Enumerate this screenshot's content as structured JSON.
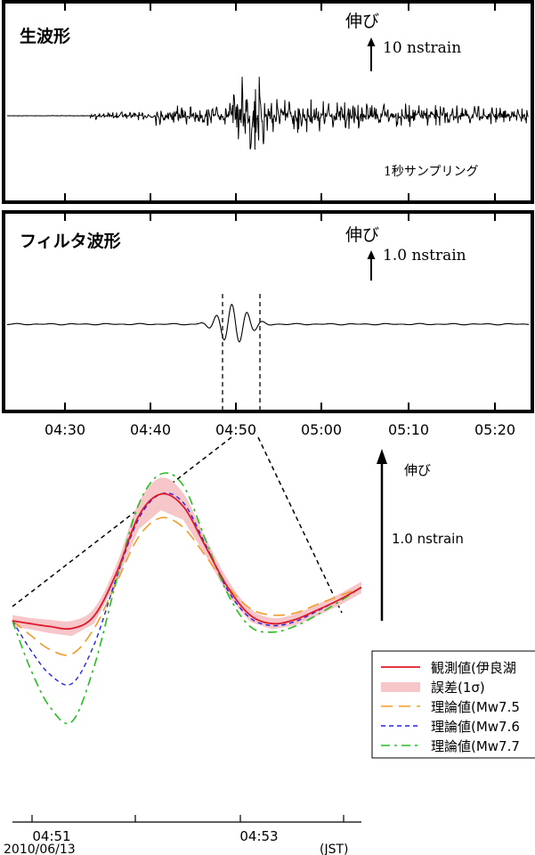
{
  "panel1": {
    "label": "生波形",
    "extension_label": "伸び",
    "scale_label": "10 nstrain",
    "sampling_note": "1秒サンプリング"
  },
  "panel2": {
    "label": "フィルタ波形",
    "extension_label": "伸び",
    "scale_label": "1.0 nstrain"
  },
  "time_axis": {
    "ticks": [
      "04:30",
      "04:40",
      "04:50",
      "05:00",
      "05:10",
      "05:20"
    ]
  },
  "zoom": {
    "extension_label": "伸び",
    "scale_label": "1.0 nstrain",
    "date_label": "2010/06/13",
    "tz_label": "(JST)"
  },
  "legend": {
    "items": [
      {
        "label": "観測値(伊良湖",
        "color": "#e0192a",
        "style": "solid"
      },
      {
        "label": "誤差(1σ)",
        "color": "#f7c6c9",
        "style": "band"
      },
      {
        "label": "理論値(Mw7.5",
        "color": "#f39b2a",
        "style": "long-dash"
      },
      {
        "label": "理論値(Mw7.6",
        "color": "#2424e8",
        "style": "short-dash"
      },
      {
        "label": "理論値(Mw7.7",
        "color": "#25c01f",
        "style": "dash-dot"
      }
    ]
  },
  "chart_data": [
    {
      "type": "line",
      "title": "生波形",
      "x_ticks": [
        "04:30",
        "04:40",
        "04:50",
        "05:00",
        "05:10",
        "05:20"
      ],
      "xlim": [
        "04:22",
        "05:26"
      ],
      "scale_bar": "10 nstrain",
      "note": "1秒サンプリング"
    },
    {
      "type": "line",
      "title": "フィルタ波形",
      "x_ticks": [
        "04:30",
        "04:40",
        "04:50",
        "05:00",
        "05:10",
        "05:20"
      ],
      "xlim": [
        "04:22",
        "05:26"
      ],
      "scale_bar": "1.0 nstrain",
      "zoom_window": [
        "04:50.3",
        "04:53.5"
      ]
    },
    {
      "type": "line",
      "x_ticks": [
        "04:51",
        "04:53"
      ],
      "xlim": [
        "04:50.8",
        "04:53.2"
      ],
      "units": "nstrain",
      "x": [
        0.0,
        0.12,
        0.25,
        0.4,
        0.55,
        0.7,
        0.85,
        1.0,
        1.15,
        1.3,
        1.45,
        1.6,
        1.75,
        1.9,
        2.05,
        2.2,
        2.35
      ],
      "series": [
        {
          "name": "観測値(伊良湖",
          "values": [
            0.0,
            -0.03,
            -0.06,
            -0.08,
            0.05,
            0.5,
            1.1,
            1.33,
            1.2,
            0.78,
            0.35,
            0.06,
            -0.03,
            0.01,
            0.11,
            0.22,
            0.35
          ]
        },
        {
          "name": "誤差(1σ)",
          "values": [
            0.06,
            0.06,
            0.07,
            0.08,
            0.08,
            0.09,
            0.14,
            0.17,
            0.14,
            0.09,
            0.08,
            0.07,
            0.06,
            0.06,
            0.06,
            0.06,
            0.06
          ]
        },
        {
          "name": "理論値(Mw7.5",
          "values": [
            0.0,
            -0.15,
            -0.3,
            -0.35,
            -0.08,
            0.4,
            0.88,
            1.08,
            0.98,
            0.68,
            0.36,
            0.13,
            0.06,
            0.08,
            0.17,
            0.26,
            0.35
          ]
        },
        {
          "name": "理論値(Mw7.6",
          "values": [
            0.0,
            -0.3,
            -0.56,
            -0.66,
            -0.25,
            0.45,
            1.07,
            1.33,
            1.24,
            0.8,
            0.32,
            0.03,
            -0.05,
            -0.01,
            0.1,
            0.22,
            0.35
          ]
        },
        {
          "name": "理論値(Mw7.7",
          "values": [
            0.0,
            -0.5,
            -0.9,
            -1.06,
            -0.48,
            0.42,
            1.22,
            1.54,
            1.42,
            0.85,
            0.28,
            -0.06,
            -0.12,
            -0.06,
            0.06,
            0.2,
            0.35
          ]
        }
      ]
    }
  ]
}
